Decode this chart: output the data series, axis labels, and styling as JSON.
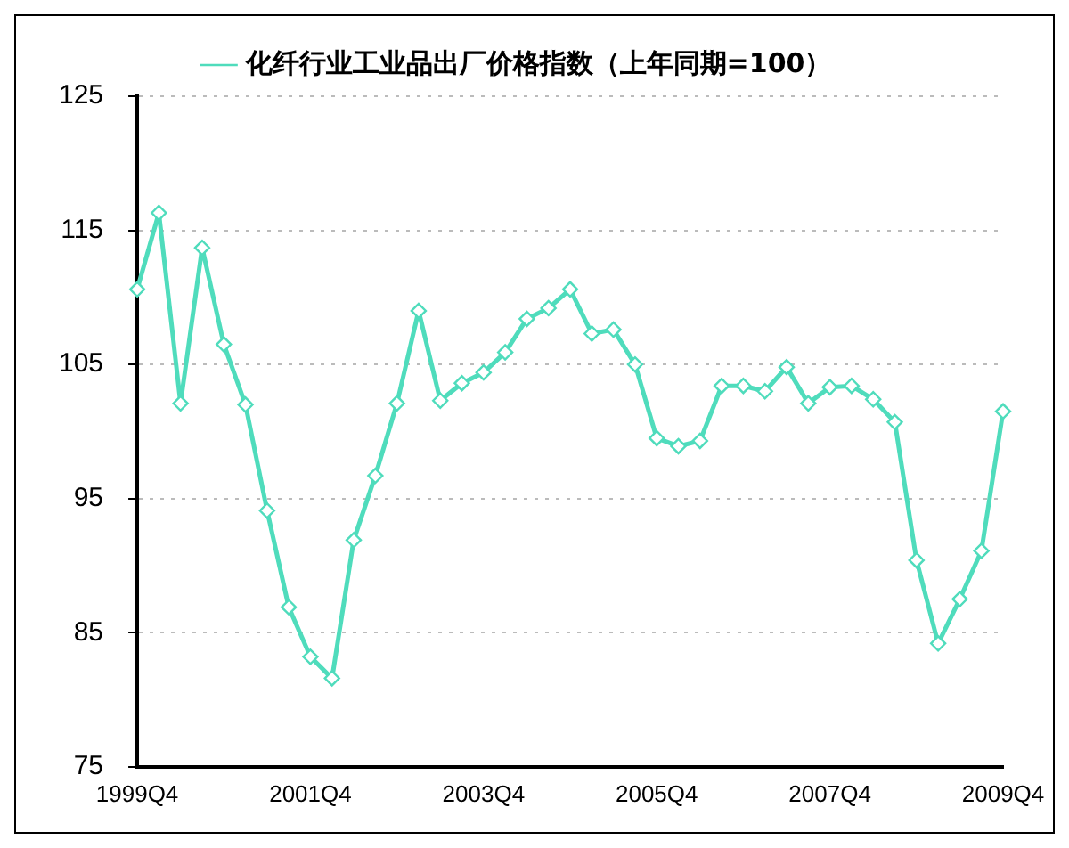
{
  "chart_data": {
    "type": "line",
    "legend": "top",
    "grid": "y",
    "marker": "diamond",
    "line_style": "solid",
    "categories": [
      "1999Q4",
      null,
      null,
      null,
      null,
      null,
      null,
      null,
      "2001Q4",
      null,
      null,
      null,
      null,
      null,
      null,
      null,
      "2003Q4",
      null,
      null,
      null,
      null,
      null,
      null,
      null,
      "2005Q4",
      null,
      null,
      null,
      null,
      null,
      null,
      null,
      "2007Q4",
      null,
      null,
      null,
      null,
      null,
      null,
      null,
      "2009Q4"
    ],
    "ylim": [
      75,
      125
    ],
    "yticks": [
      75,
      85,
      95,
      105,
      115,
      125
    ],
    "series": [
      {
        "name": "化纤行业工业品出厂价格指数（上年同期=100）",
        "color": "#4fdcbc",
        "values": [
          110.6,
          116.3,
          102.1,
          113.7,
          106.5,
          102,
          94.1,
          86.9,
          83.2,
          81.6,
          91.9,
          96.7,
          102.1,
          109,
          102.3,
          103.6,
          104.4,
          105.9,
          108.4,
          109.2,
          110.6,
          107.3,
          107.6,
          105,
          99.5,
          98.9,
          99.3,
          103.4,
          103.4,
          103,
          104.8,
          102.1,
          103.3,
          103.4,
          102.4,
          100.7,
          90.4,
          84.2,
          87.5,
          91.1,
          101.5
        ]
      }
    ]
  }
}
